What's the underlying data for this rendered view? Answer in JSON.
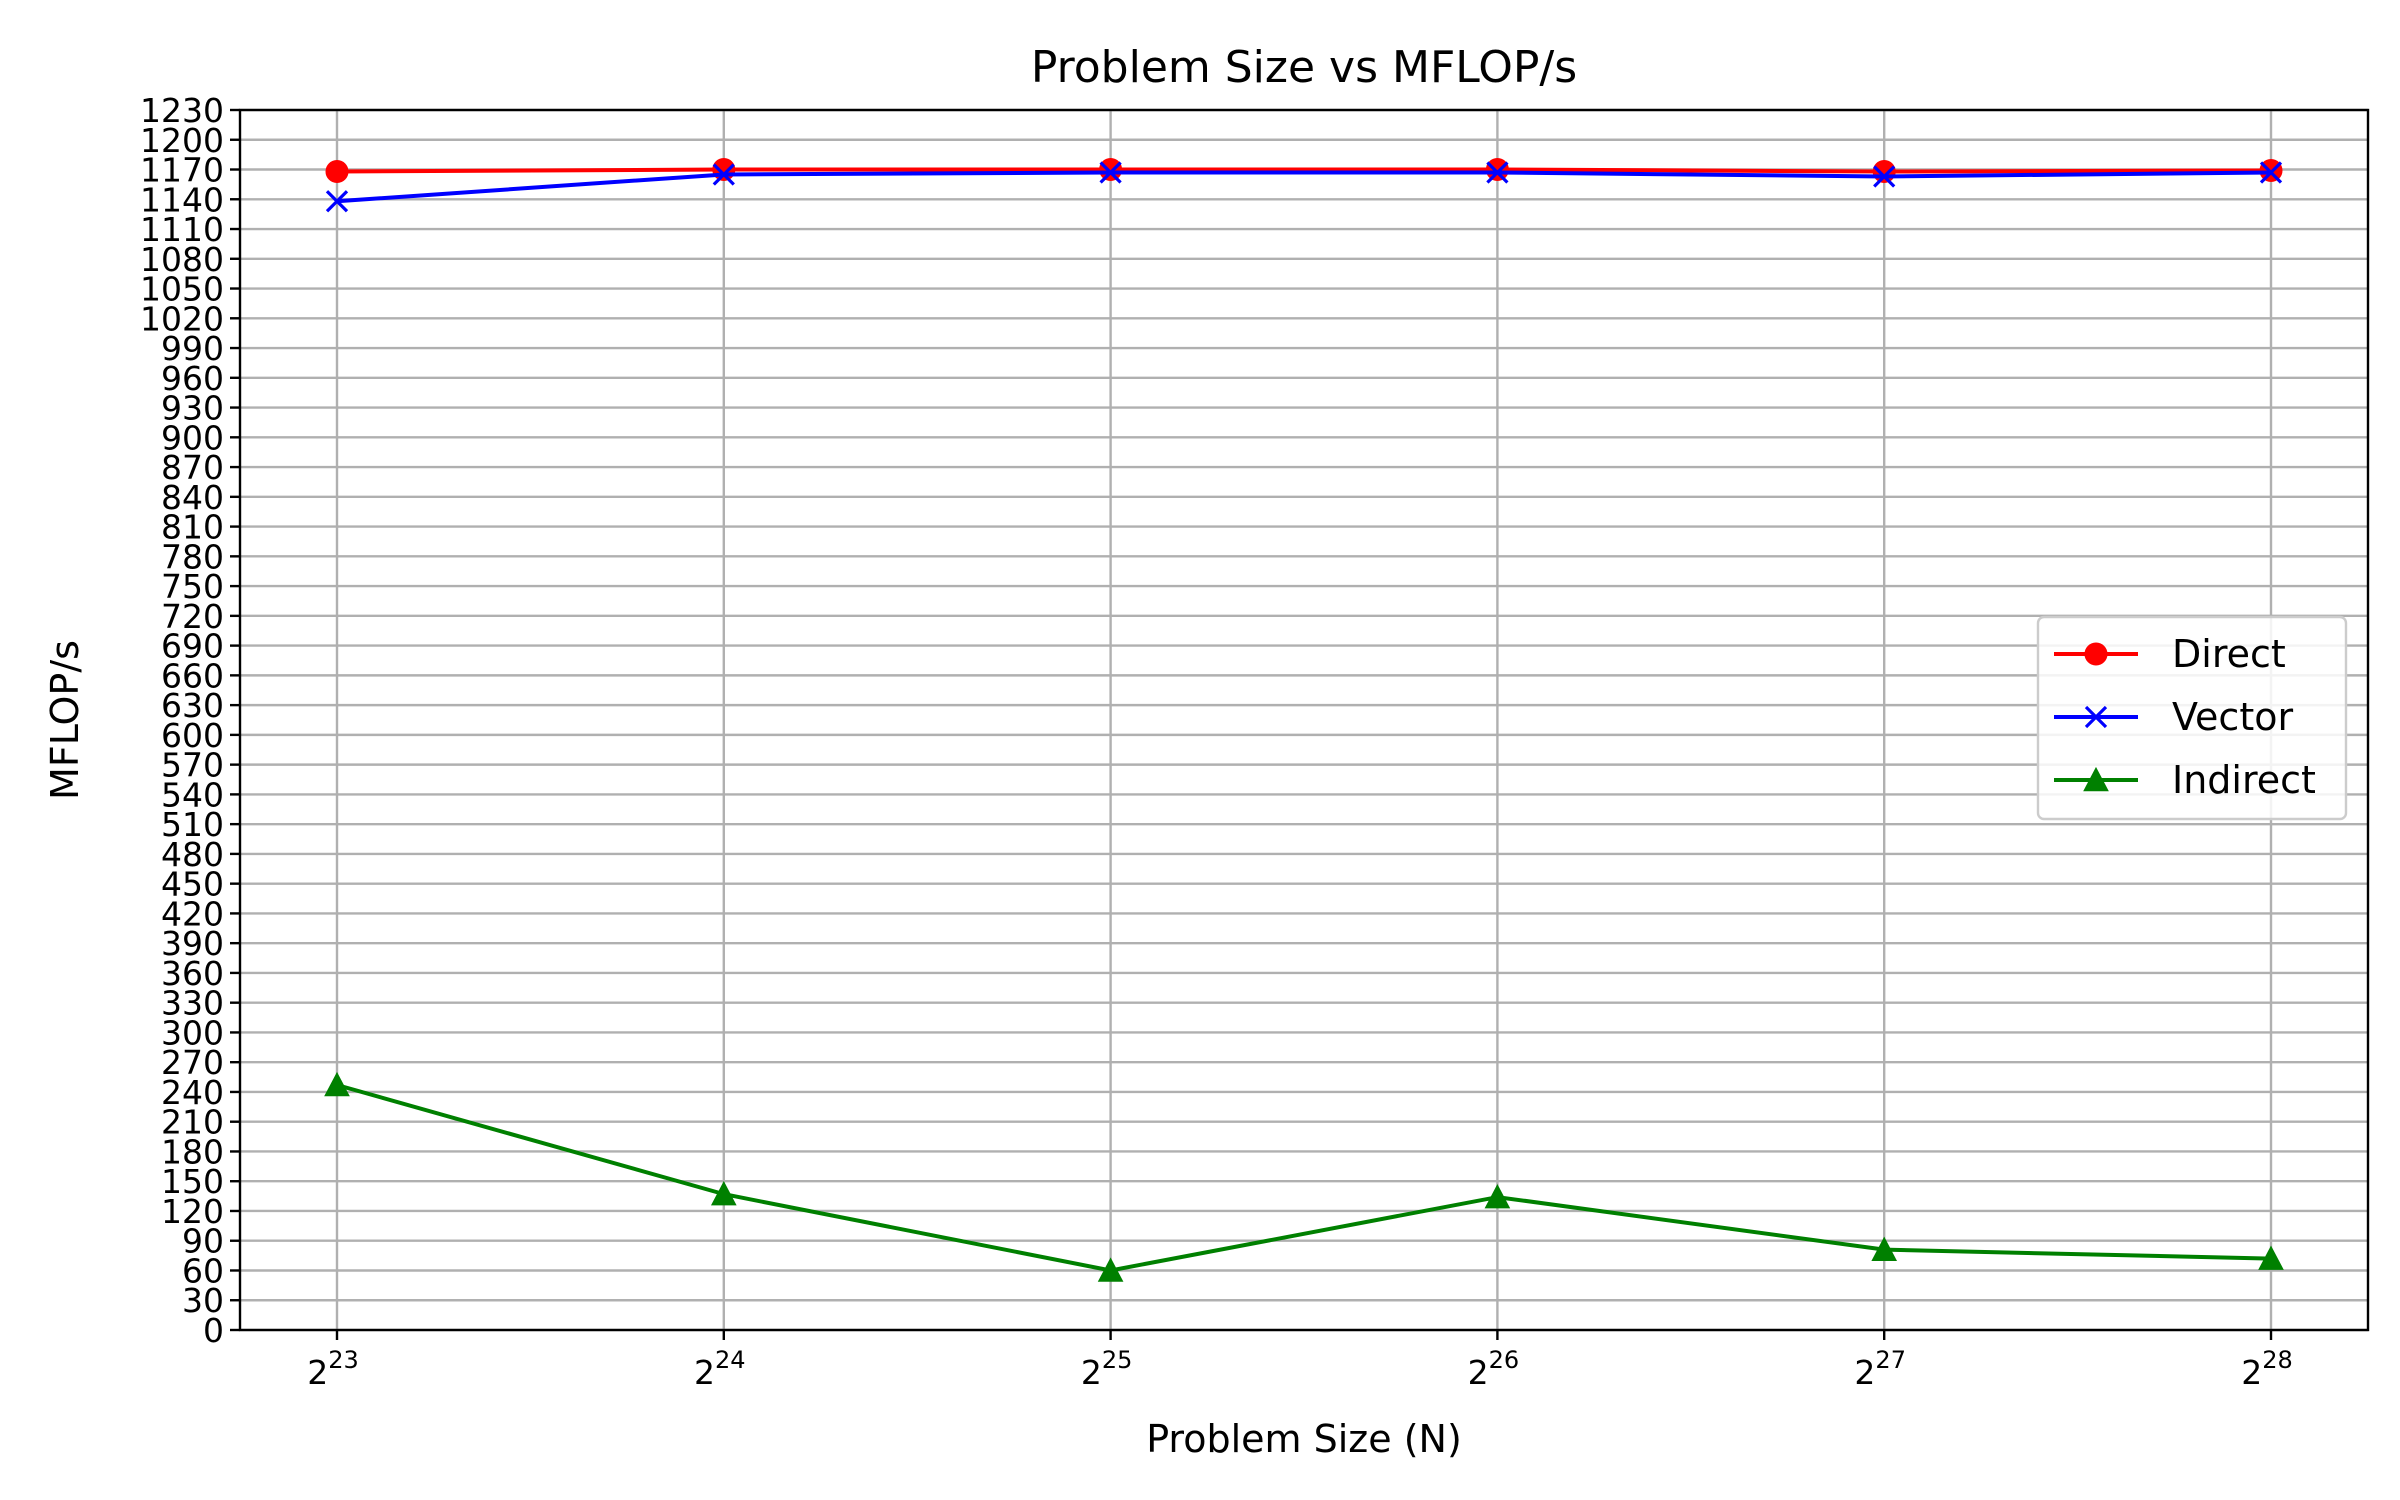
{
  "chart_data": {
    "type": "line",
    "title": "Problem Size vs MFLOP/s",
    "xlabel": "Problem Size (N)",
    "ylabel": "MFLOP/s",
    "x_scale": "log2",
    "x": [
      8388608,
      16777216,
      33554432,
      67108864,
      134217728,
      268435456
    ],
    "x_tick_labels": [
      {
        "base": "2",
        "exp": "23"
      },
      {
        "base": "2",
        "exp": "24"
      },
      {
        "base": "2",
        "exp": "25"
      },
      {
        "base": "2",
        "exp": "26"
      },
      {
        "base": "2",
        "exp": "27"
      },
      {
        "base": "2",
        "exp": "28"
      }
    ],
    "ylim": [
      0,
      1230
    ],
    "y_ticks": [
      0,
      30,
      60,
      90,
      120,
      150,
      180,
      210,
      240,
      270,
      300,
      330,
      360,
      390,
      420,
      450,
      480,
      510,
      540,
      570,
      600,
      630,
      660,
      690,
      720,
      750,
      780,
      810,
      840,
      870,
      900,
      930,
      960,
      990,
      1020,
      1050,
      1080,
      1110,
      1140,
      1170,
      1200,
      1230
    ],
    "grid": true,
    "legend_position": "center-right",
    "series": [
      {
        "name": "Direct",
        "color": "#ff0000",
        "marker": "circle",
        "values": [
          1168,
          1170,
          1170,
          1170,
          1168,
          1169
        ]
      },
      {
        "name": "Vector",
        "color": "#0000ff",
        "marker": "x",
        "values": [
          1138,
          1165,
          1167,
          1167,
          1163,
          1167
        ]
      },
      {
        "name": "Indirect",
        "color": "#008000",
        "marker": "triangle",
        "values": [
          247,
          137,
          60,
          134,
          81,
          72
        ]
      }
    ]
  }
}
